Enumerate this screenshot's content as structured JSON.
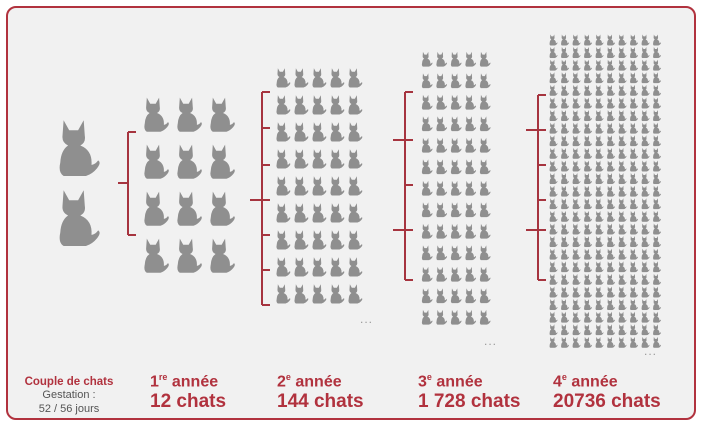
{
  "origin": {
    "title": "Couple de chats",
    "gestation_label": "Gestation :",
    "gestation_days": "52 / 56 jours"
  },
  "years": [
    {
      "number": "1",
      "suffix": "re",
      "word": "année",
      "count": "12 chats"
    },
    {
      "number": "2",
      "suffix": "e",
      "word": "année",
      "count": "144 chats"
    },
    {
      "number": "3",
      "suffix": "e",
      "word": "année",
      "count": "1 728 chats"
    },
    {
      "number": "4",
      "suffix": "e",
      "word": "année",
      "count": "20736 chats"
    }
  ],
  "ellipsis": "..."
}
